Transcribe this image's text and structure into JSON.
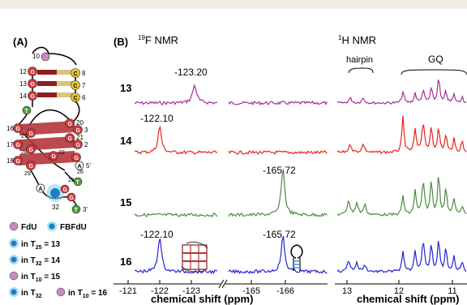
{
  "panel_a": {
    "label": "(A)",
    "nodes": [
      "10",
      "12",
      "13",
      "14",
      "8",
      "7",
      "6",
      "16",
      "27",
      "17",
      "28",
      "18",
      "29",
      "20",
      "3",
      "21",
      "2",
      "22",
      "26",
      "25",
      "32",
      "5'",
      "3'"
    ],
    "letters": {
      "g": "G",
      "c": "C",
      "t": "T",
      "a": "A"
    },
    "legend": {
      "fdu": "FdU",
      "fbfdu": "FBFdU",
      "items": [
        {
          "prefix": "in ",
          "t": "T",
          "sub": "25",
          "rest": " = 13"
        },
        {
          "prefix": "in ",
          "t": "T",
          "sub": "32",
          "rest": " = 14"
        },
        {
          "prefix": "in ",
          "t": "T",
          "sub": "10",
          "rest": " = 15"
        },
        {
          "prefix": "in ",
          "t": "T",
          "sub": "32",
          "rest": "",
          "t2": "T",
          "sub2": "10",
          "rest2": " = 16"
        }
      ]
    }
  },
  "panel_b": {
    "label": "(B)",
    "f19_title_sup": "19",
    "f19_title": "F NMR",
    "h1_title_sup": "1",
    "h1_title": "H NMR",
    "hairpin_label": "hairpin",
    "gq_label": "GQ",
    "rows": [
      "13",
      "14",
      "15",
      "16"
    ],
    "peaks": [
      "-123.20",
      "-122.10",
      "-165.72",
      "-122.10",
      "-165.72"
    ],
    "xlabel": "chemical shift (ppm)",
    "ticks_f19_a": [
      "-121",
      "-122",
      "-123"
    ],
    "ticks_f19_b": [
      "-165",
      "-166"
    ],
    "ticks_h1": [
      "13",
      "12",
      "11"
    ]
  },
  "colors": {
    "row13": "#a1309a",
    "row14": "#e8231c",
    "row15": "#4a8c3f",
    "row16": "#2424d6",
    "pink": "#c98ac4",
    "green_node": "#4b9b3c",
    "red_node": "#d23a3a",
    "yellow_node": "#f0c72b",
    "bar": "#b5353a",
    "cyan": "#2fa3e0"
  }
}
